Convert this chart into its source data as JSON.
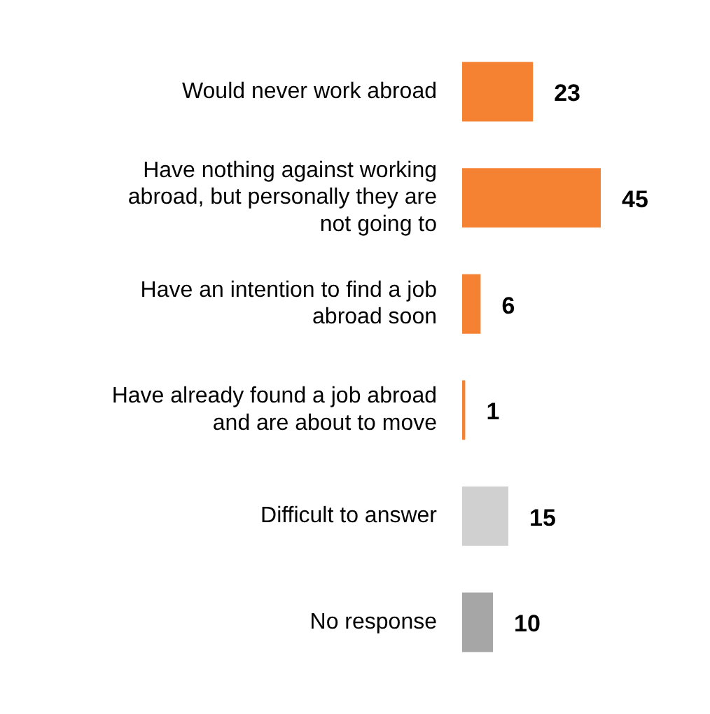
{
  "chart_data": {
    "type": "bar",
    "orientation": "horizontal",
    "categories": [
      "Would never work abroad",
      "Have nothing against working abroad, but personally they are not going to",
      "Have an intention to find a job abroad soon",
      "Have already found a job abroad and are about to move",
      "Difficult to answer",
      "No response"
    ],
    "values": [
      23,
      45,
      6,
      1,
      15,
      10
    ],
    "colors": [
      "#f58233",
      "#f58233",
      "#f58233",
      "#f58233",
      "#d0d0d0",
      "#a6a6a6"
    ],
    "data_labels": true,
    "tick_labels": "y"
  }
}
